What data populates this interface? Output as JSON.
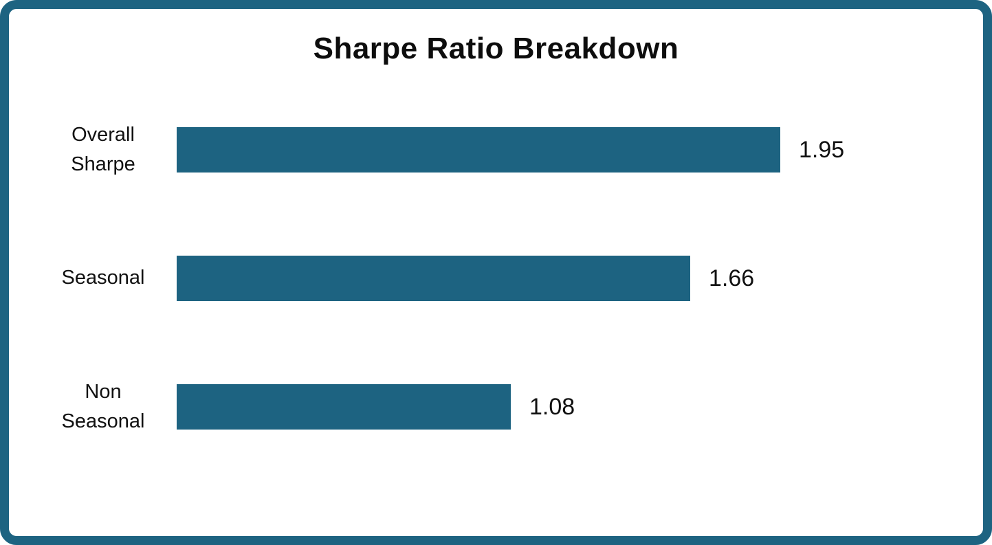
{
  "chart_data": {
    "type": "bar",
    "orientation": "horizontal",
    "title": "Sharpe Ratio Breakdown",
    "categories": [
      "Overall Sharpe",
      "Seasonal",
      "Non Seasonal"
    ],
    "values": [
      1.95,
      1.66,
      1.08
    ],
    "value_labels": [
      "1.95",
      "1.66",
      "1.08"
    ],
    "xlabel": "",
    "ylabel": "",
    "xlim": [
      0,
      1.95
    ],
    "grid": false,
    "legend": false,
    "axes_visible": false,
    "bar_color": "#1D6381",
    "frame_border_color": "#1D6381",
    "title_color": "#0d0d0d",
    "label_color": "#111111",
    "background_color": "#ffffff"
  }
}
